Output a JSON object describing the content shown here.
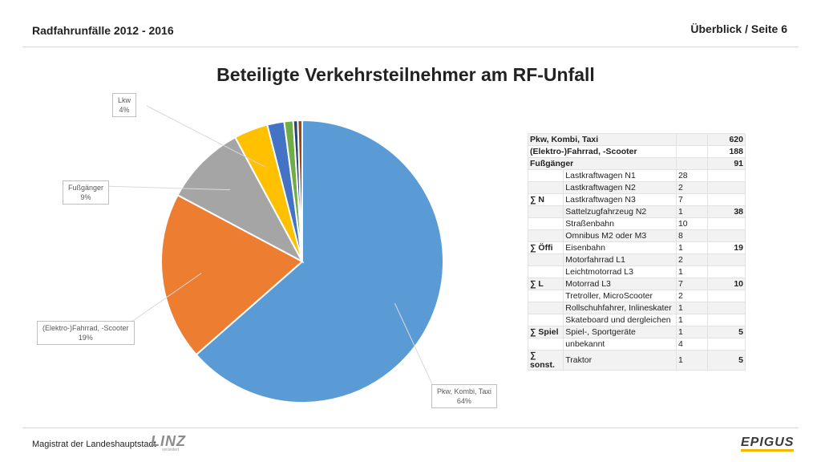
{
  "header": {
    "left": "Radfahrunfälle 2012 - 2016",
    "right": "Überblick / Seite 6"
  },
  "footer": {
    "text": "Magistrat der Landeshauptstadt",
    "logo_text": "LINZ",
    "logo_sub": "verändert",
    "partner_logo": "EPIGUS"
  },
  "chart_data": {
    "type": "pie",
    "title": "Beteiligte Verkehrsteilnehmer am RF-Unfall",
    "slices": [
      {
        "label": "Pkw, Kombi, Taxi",
        "value": 620,
        "percent_label": "64%",
        "color": "#5b9bd5"
      },
      {
        "label": "(Elektro-)Fahrrad, -Scooter",
        "value": 188,
        "percent_label": "19%",
        "color": "#ed7d31"
      },
      {
        "label": "Fußgänger",
        "value": 91,
        "percent_label": "9%",
        "color": "#a5a5a5"
      },
      {
        "label": "Lkw",
        "value": 38,
        "percent_label": "4%",
        "color": "#ffc000"
      },
      {
        "label": "∑ Öffi",
        "value": 19,
        "percent_label": "",
        "color": "#4472c4"
      },
      {
        "label": "∑ L",
        "value": 10,
        "percent_label": "",
        "color": "#70ad47"
      },
      {
        "label": "∑ Spiel",
        "value": 5,
        "percent_label": "",
        "color": "#264478"
      },
      {
        "label": "∑ sonst.",
        "value": 5,
        "percent_label": "",
        "color": "#9e480e"
      }
    ],
    "callouts": [
      {
        "label": "Pkw, Kombi, Taxi",
        "pct": "64%"
      },
      {
        "label": "(Elektro-)Fahrrad, -Scooter",
        "pct": "19%"
      },
      {
        "label": "Fußgänger",
        "pct": "9%"
      },
      {
        "label": "Lkw",
        "pct": "4%"
      }
    ]
  },
  "table": {
    "rows": [
      {
        "group": "",
        "name": "Pkw, Kombi, Taxi",
        "count": "",
        "total": "620",
        "bold_name": true
      },
      {
        "group": "",
        "name": "(Elektro-)Fahrrad, -Scooter",
        "count": "",
        "total": "188",
        "bold_name": true
      },
      {
        "group": "",
        "name": "Fußgänger",
        "count": "",
        "total": "91",
        "bold_name": true
      },
      {
        "group": "",
        "name": "Lastkraftwagen N1",
        "count": "28",
        "total": ""
      },
      {
        "group": "",
        "name": "Lastkraftwagen N2",
        "count": "2",
        "total": ""
      },
      {
        "group": "∑ N",
        "name": "Lastkraftwagen N3",
        "count": "7",
        "total": ""
      },
      {
        "group": "",
        "name": "Sattelzugfahrzeug N2",
        "count": "1",
        "total": "38"
      },
      {
        "group": "",
        "name": "Straßenbahn",
        "count": "10",
        "total": ""
      },
      {
        "group": "",
        "name": "Omnibus M2 oder M3",
        "count": "8",
        "total": ""
      },
      {
        "group": "∑ Öffi",
        "name": "Eisenbahn",
        "count": "1",
        "total": "19"
      },
      {
        "group": "",
        "name": "Motorfahrrad L1",
        "count": "2",
        "total": ""
      },
      {
        "group": "",
        "name": "Leichtmotorrad L3",
        "count": "1",
        "total": ""
      },
      {
        "group": "∑ L",
        "name": "Motorrad L3",
        "count": "7",
        "total": "10"
      },
      {
        "group": "",
        "name": "Tretroller, MicroScooter",
        "count": "2",
        "total": ""
      },
      {
        "group": "",
        "name": "Rollschuhfahrer, Inlineskater",
        "count": "1",
        "total": ""
      },
      {
        "group": "",
        "name": "Skateboard und dergleichen",
        "count": "1",
        "total": ""
      },
      {
        "group": "∑ Spiel",
        "name": "Spiel-, Sportgeräte",
        "count": "1",
        "total": "5"
      },
      {
        "group": "",
        "name": "unbekannt",
        "count": "4",
        "total": ""
      },
      {
        "group": "∑ sonst.",
        "name": "Traktor",
        "count": "1",
        "total": "5"
      }
    ]
  }
}
